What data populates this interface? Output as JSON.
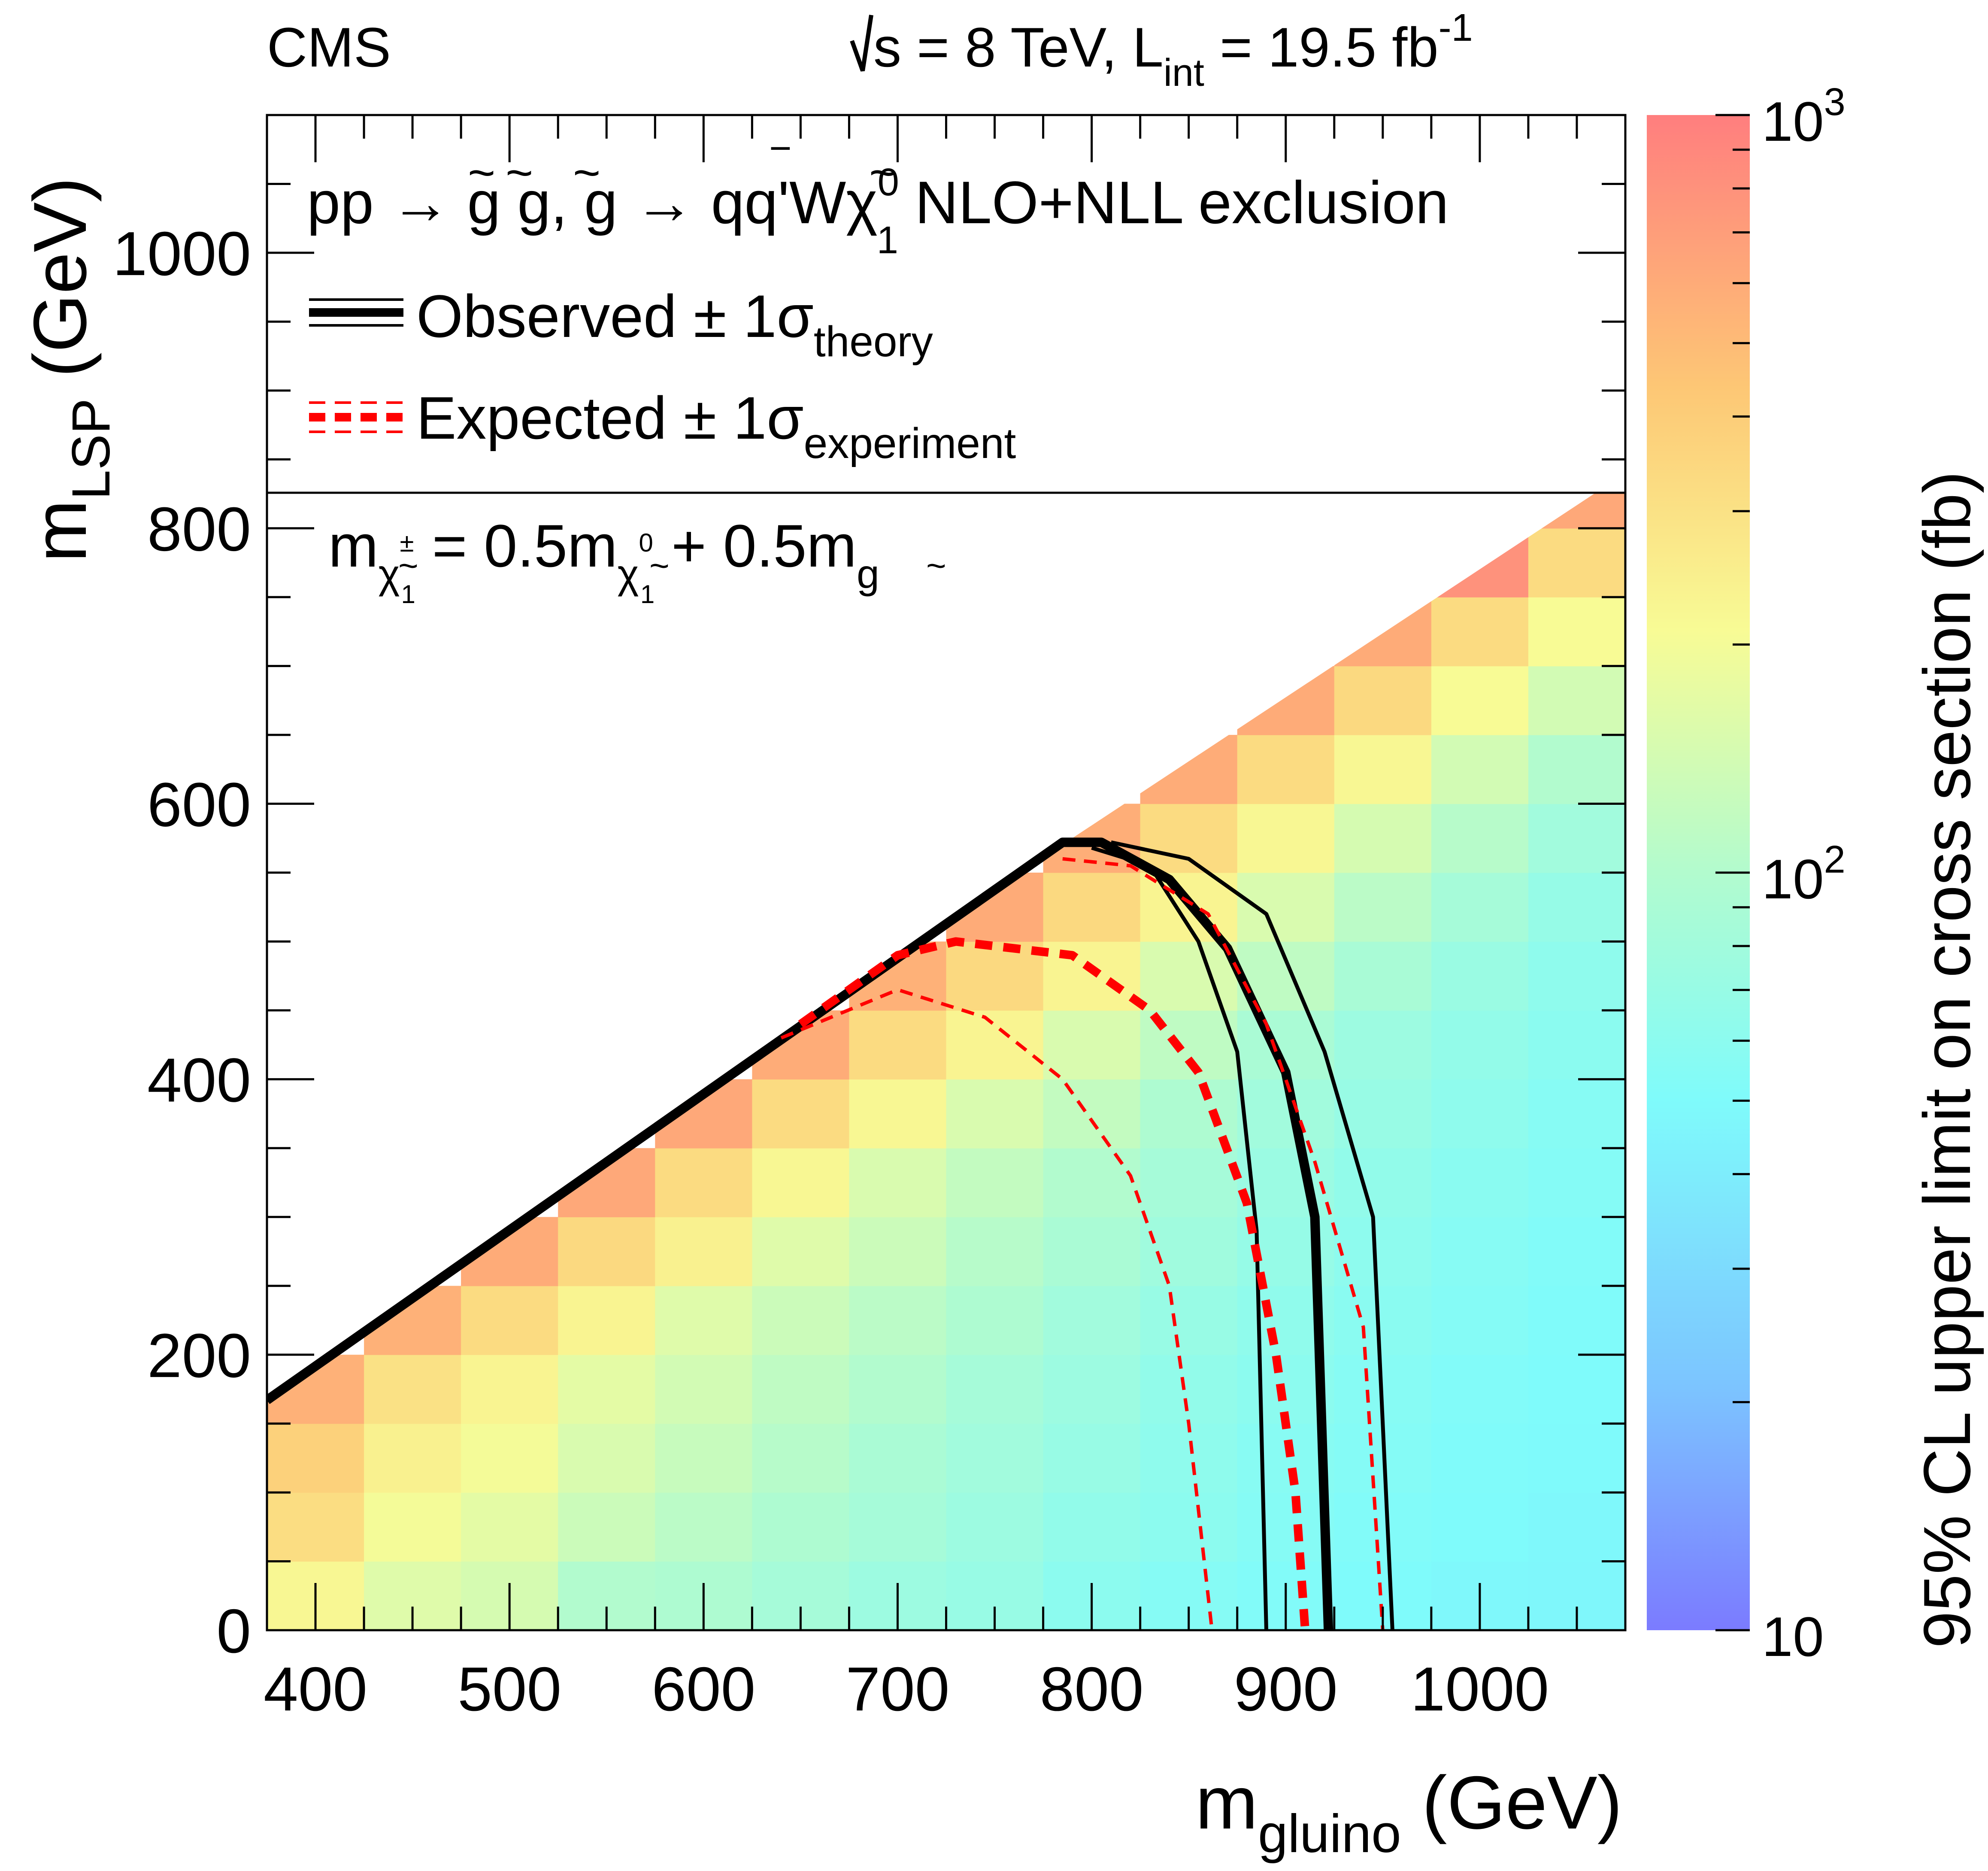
{
  "header": {
    "experiment": "CMS",
    "sqrt": "s",
    "energy": " = 8 TeV,  L",
    "lumi_sub": "int",
    "lumi_value": " = 19.5 fb",
    "lumi_exp": "-1"
  },
  "legend": {
    "process": {
      "pre": "pp → ",
      "part_a": "g",
      "tilde": "~",
      "mid1": " ",
      "part_b": "g",
      "mid2": ", ",
      "part_c": "g",
      "arrow": " → q",
      "qbar": "q",
      "bar_mark": "‾",
      "wprime": "'W",
      "chi": "χ",
      "chi_sup": "0",
      "chi_sub": "1",
      "post": "  NLO+NLL exclusion"
    },
    "observed": {
      "main": "Observed",
      "pm": " ± 1σ",
      "sub": "theory"
    },
    "expected": {
      "main": "Expected",
      "pm": " ± 1σ",
      "sub": "experiment"
    }
  },
  "annotation": {
    "m": "m",
    "chi": "χ",
    "sup_pm": "±",
    "sub1": "1",
    "eq": " = 0.5m",
    "sup0": "0",
    "plus": " + 0.5m",
    "g": "g",
    "tilde": "~"
  },
  "axes": {
    "x_m": "m",
    "x_sub": "gluino",
    "x_unit": " (GeV)",
    "y_m": "m",
    "y_sub": "LSP",
    "y_unit": " (GeV)",
    "z_label": "95% CL upper limit on cross section (fb)",
    "x_ticks": [
      "400",
      "500",
      "600",
      "700",
      "800",
      "900",
      "1000"
    ],
    "y_ticks": [
      "0",
      "200",
      "400",
      "600",
      "800",
      "1000"
    ],
    "z_ticks": [
      {
        "base": "10",
        "exp": "3"
      },
      {
        "base": "10",
        "exp": "2"
      },
      {
        "base": "10",
        "exp": ""
      }
    ]
  },
  "chart_data": {
    "type": "heatmap",
    "x_axis": {
      "quantity": "m_gluino",
      "unit": "GeV",
      "range": [
        375,
        1075
      ],
      "bin_width": 50
    },
    "y_axis": {
      "quantity": "m_LSP",
      "unit": "GeV",
      "range": [
        0,
        1100
      ],
      "bin_width": 50
    },
    "z_axis": {
      "quantity": "95% CL upper limit on cross section",
      "unit": "fb",
      "scale": "log",
      "range": [
        10,
        1000
      ]
    },
    "x_bin_centers": [
      400,
      450,
      500,
      550,
      600,
      650,
      700,
      750,
      800,
      850,
      900,
      950,
      1000,
      1050
    ],
    "y_bin_centers": [
      25,
      75,
      125,
      175,
      225,
      275,
      325,
      375,
      425,
      475,
      525,
      575,
      625,
      675,
      725,
      775,
      825
    ],
    "z_values_fb": [
      [
        220,
        160,
        145,
        100,
        95,
        85,
        75,
        70,
        60,
        55,
        52,
        50,
        48,
        47
      ],
      [
        320,
        200,
        170,
        130,
        110,
        95,
        85,
        75,
        65,
        60,
        55,
        52,
        50,
        48
      ],
      [
        380,
        240,
        200,
        150,
        125,
        105,
        90,
        80,
        70,
        62,
        57,
        54,
        51,
        49
      ],
      [
        560,
        300,
        230,
        170,
        140,
        115,
        100,
        85,
        75,
        65,
        60,
        56,
        52,
        50
      ],
      [
        null,
        560,
        330,
        230,
        160,
        130,
        110,
        95,
        80,
        70,
        63,
        58,
        54,
        51
      ],
      [
        null,
        null,
        600,
        340,
        240,
        160,
        130,
        105,
        90,
        78,
        68,
        61,
        56,
        52
      ],
      [
        null,
        null,
        null,
        620,
        330,
        220,
        150,
        120,
        100,
        85,
        73,
        65,
        58,
        54
      ],
      [
        null,
        null,
        null,
        null,
        620,
        330,
        220,
        150,
        120,
        95,
        80,
        70,
        62,
        56
      ],
      [
        null,
        null,
        null,
        null,
        null,
        590,
        330,
        230,
        150,
        115,
        90,
        75,
        66,
        59
      ],
      [
        null,
        null,
        null,
        null,
        null,
        null,
        560,
        340,
        230,
        150,
        115,
        88,
        72,
        62
      ],
      [
        null,
        null,
        null,
        null,
        null,
        null,
        null,
        600,
        340,
        230,
        150,
        110,
        85,
        68
      ],
      [
        null,
        null,
        null,
        null,
        null,
        null,
        null,
        null,
        580,
        330,
        220,
        145,
        105,
        80
      ],
      [
        null,
        null,
        null,
        null,
        null,
        null,
        null,
        null,
        null,
        590,
        330,
        220,
        140,
        100
      ],
      [
        null,
        null,
        null,
        null,
        null,
        null,
        null,
        null,
        null,
        null,
        600,
        340,
        210,
        140
      ],
      [
        null,
        null,
        null,
        null,
        null,
        null,
        null,
        null,
        null,
        null,
        null,
        600,
        330,
        210
      ],
      [
        null,
        null,
        null,
        null,
        null,
        null,
        null,
        null,
        null,
        null,
        null,
        null,
        800,
        330
      ],
      [
        null,
        null,
        null,
        null,
        null,
        null,
        null,
        null,
        null,
        null,
        null,
        null,
        null,
        620
      ]
    ],
    "contours": [
      {
        "name": "Observed",
        "style": "thick-solid",
        "color": "#000000",
        "points": [
          [
            375,
            167
          ],
          [
            785,
            572
          ],
          [
            805,
            572
          ],
          [
            840,
            545
          ],
          [
            870,
            495
          ],
          [
            900,
            405
          ],
          [
            915,
            300
          ],
          [
            922,
            0
          ]
        ]
      },
      {
        "name": "Observed ± 1σ theory (upper)",
        "style": "thin-solid",
        "color": "#000000",
        "points": [
          [
            810,
            572
          ],
          [
            850,
            560
          ],
          [
            890,
            520
          ],
          [
            920,
            420
          ],
          [
            945,
            300
          ],
          [
            955,
            0
          ]
        ]
      },
      {
        "name": "Observed ± 1σ theory (lower)",
        "style": "thin-solid",
        "color": "#000000",
        "points": [
          [
            800,
            568
          ],
          [
            830,
            555
          ],
          [
            855,
            500
          ],
          [
            875,
            420
          ],
          [
            885,
            290
          ],
          [
            890,
            0
          ]
        ]
      },
      {
        "name": "Expected",
        "style": "thick-dashed",
        "color": "#ff0000",
        "points": [
          [
            650,
            440
          ],
          [
            700,
            490
          ],
          [
            730,
            500
          ],
          [
            790,
            490
          ],
          [
            830,
            450
          ],
          [
            855,
            405
          ],
          [
            880,
            310
          ],
          [
            895,
            200
          ],
          [
            905,
            100
          ],
          [
            910,
            0
          ]
        ]
      },
      {
        "name": "Expected ± 1σ experiment (upper)",
        "style": "thin-dashed",
        "color": "#ff0000",
        "points": [
          [
            785,
            560
          ],
          [
            820,
            555
          ],
          [
            860,
            520
          ],
          [
            890,
            440
          ],
          [
            915,
            340
          ],
          [
            940,
            220
          ],
          [
            950,
            0
          ]
        ]
      },
      {
        "name": "Expected ± 1σ experiment (lower)",
        "style": "thin-dashed",
        "color": "#ff0000",
        "points": [
          [
            640,
            430
          ],
          [
            700,
            465
          ],
          [
            745,
            445
          ],
          [
            785,
            400
          ],
          [
            820,
            330
          ],
          [
            840,
            250
          ],
          [
            850,
            150
          ],
          [
            862,
            0
          ]
        ]
      }
    ],
    "diagonal_boundary_points": [
      [
        375,
        167
      ],
      [
        790,
        575
      ],
      [
        1075,
        840
      ]
    ]
  }
}
